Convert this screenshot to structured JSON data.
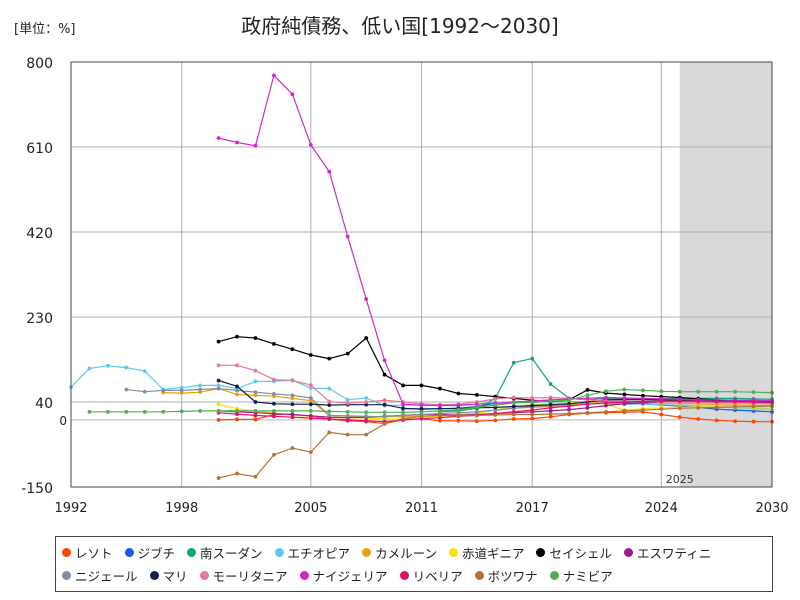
{
  "unit_label": "[単位：%]",
  "chart_data": {
    "type": "line",
    "title": "政府純債務、低い国[1992～2030]",
    "xlabel": "",
    "ylabel": "単位：%",
    "xlim": [
      1992,
      2030
    ],
    "ylim": [
      -150,
      800
    ],
    "x_ticks": [
      1992,
      1998,
      2005,
      2011,
      2017,
      2024,
      2030
    ],
    "x_tick_labels": [
      "1992",
      "1998",
      "2005",
      "2011",
      "2017",
      "2024",
      "2030"
    ],
    "y_ticks": [
      -150,
      40,
      230,
      420,
      610,
      800
    ],
    "y_tick_labels": [
      "-150",
      "40",
      "230",
      "420",
      "610",
      "800"
    ],
    "zero_label": "0",
    "forecast_start": 2025,
    "forecast_label": "2025",
    "series": [
      {
        "name": "レソト",
        "color": "#ff4500",
        "x": [
          2000,
          2001,
          2002,
          2003,
          2004,
          2005,
          2006,
          2007,
          2008,
          2009,
          2010,
          2011,
          2012,
          2013,
          2014,
          2015,
          2016,
          2017,
          2018,
          2019,
          2020,
          2021,
          2022,
          2023,
          2024,
          2025,
          2026,
          2027,
          2028,
          2029,
          2030
        ],
        "values": [
          0,
          1,
          1,
          12,
          12,
          8,
          2,
          -2,
          -4,
          -8,
          0,
          3,
          -2,
          -2,
          -3,
          -1,
          2,
          3,
          7,
          12,
          15,
          16,
          17,
          18,
          12,
          6,
          2,
          -1,
          -3,
          -4,
          -4
        ]
      },
      {
        "name": "ジブチ",
        "color": "#1060e0",
        "x": [
          2010,
          2011,
          2012,
          2013,
          2014,
          2015,
          2016,
          2017,
          2018,
          2019,
          2020,
          2021,
          2022,
          2023,
          2024,
          2025,
          2026,
          2027,
          2028,
          2029,
          2030
        ],
        "values": [
          25,
          25,
          25,
          26,
          30,
          37,
          39,
          39,
          42,
          40,
          40,
          42,
          38,
          36,
          33,
          31,
          28,
          24,
          22,
          20,
          18
        ]
      },
      {
        "name": "南スーダン",
        "color": "#10a878",
        "x": [
          2012,
          2013,
          2014,
          2015,
          2016,
          2017,
          2018,
          2019,
          2020,
          2021,
          2022,
          2023,
          2024,
          2025,
          2026,
          2027,
          2028,
          2029,
          2030
        ],
        "values": [
          18,
          20,
          26,
          48,
          128,
          137,
          80,
          48,
          45,
          48,
          46,
          45,
          47,
          48,
          48,
          48,
          48,
          47,
          46
        ]
      },
      {
        "name": "エチオピア",
        "color": "#60c8f0",
        "x": [
          1992,
          1993,
          1994,
          1995,
          1996,
          1997,
          1998,
          1999,
          2000,
          2001,
          2002,
          2003,
          2004,
          2005,
          2006,
          2007,
          2008,
          2009,
          2010,
          2011,
          2012,
          2013,
          2014,
          2015,
          2016,
          2017,
          2018,
          2019,
          2020,
          2021,
          2022,
          2023,
          2024,
          2025,
          2026,
          2027,
          2028,
          2029,
          2030
        ],
        "values": [
          73,
          115,
          121,
          117,
          109,
          68,
          72,
          77,
          77,
          70,
          86,
          86,
          89,
          71,
          70,
          45,
          49,
          32,
          33,
          33,
          33,
          31,
          35,
          39,
          40,
          40,
          40,
          40,
          36,
          36,
          35,
          35,
          34,
          33,
          31,
          29,
          27,
          25,
          24
        ]
      },
      {
        "name": "カメルーン",
        "color": "#e8a010",
        "x": [
          1997,
          1998,
          1999,
          2000,
          2001,
          2002,
          2003,
          2004,
          2005,
          2006,
          2007,
          2008,
          2009,
          2010,
          2011,
          2012,
          2013,
          2014,
          2015,
          2016,
          2017,
          2018,
          2019,
          2020,
          2021,
          2022,
          2023,
          2024,
          2025,
          2026,
          2027,
          2028,
          2029,
          2030
        ],
        "values": [
          61,
          60,
          62,
          70,
          57,
          55,
          53,
          48,
          43,
          10,
          8,
          5,
          8,
          8,
          8,
          9,
          12,
          15,
          22,
          26,
          28,
          30,
          33,
          35,
          37,
          36,
          38,
          37,
          37,
          36,
          34,
          33,
          33,
          32
        ]
      },
      {
        "name": "赤道ギニア",
        "color": "#f4e400",
        "x": [
          2000,
          2001,
          2002,
          2003,
          2004,
          2005,
          2006,
          2007,
          2008,
          2009,
          2010,
          2011,
          2012,
          2013,
          2014,
          2015,
          2016,
          2017,
          2018,
          2019,
          2020,
          2021,
          2022,
          2023,
          2024,
          2025,
          2026,
          2027,
          2028,
          2029,
          2030
        ],
        "values": [
          35,
          25,
          20,
          15,
          10,
          8,
          6,
          5,
          4,
          3,
          5,
          7,
          8,
          10,
          15,
          22,
          30,
          34,
          36,
          38,
          40,
          35,
          22,
          25,
          27,
          28,
          29,
          29,
          28,
          27,
          27
        ]
      },
      {
        "name": "セイシェル",
        "color": "#000000",
        "x": [
          2000,
          2001,
          2002,
          2003,
          2004,
          2005,
          2006,
          2007,
          2008,
          2009,
          2010,
          2011,
          2012,
          2013,
          2014,
          2015,
          2016,
          2017,
          2018,
          2019,
          2020,
          2021,
          2022,
          2023,
          2024,
          2025,
          2026,
          2027,
          2028,
          2029,
          2030
        ],
        "values": [
          175,
          186,
          183,
          170,
          158,
          145,
          137,
          148,
          183,
          101,
          77,
          77,
          70,
          59,
          56,
          52,
          48,
          44,
          41,
          45,
          67,
          60,
          57,
          54,
          52,
          50,
          47,
          45,
          43,
          41,
          40
        ]
      },
      {
        "name": "エスワティニ",
        "color": "#a01890",
        "x": [
          2000,
          2001,
          2002,
          2003,
          2004,
          2005,
          2006,
          2007,
          2008,
          2009,
          2010,
          2011,
          2012,
          2013,
          2014,
          2015,
          2016,
          2017,
          2018,
          2019,
          2020,
          2021,
          2022,
          2023,
          2024,
          2025,
          2026,
          2027,
          2028,
          2029,
          2030
        ],
        "values": [
          20,
          18,
          16,
          14,
          12,
          9,
          6,
          5,
          6,
          8,
          10,
          12,
          12,
          10,
          12,
          14,
          16,
          18,
          20,
          23,
          27,
          32,
          36,
          38,
          40,
          41,
          42,
          42,
          42,
          42,
          41
        ]
      },
      {
        "name": "ニジェール",
        "color": "#8090a0",
        "x": [
          1995,
          1996,
          1997,
          1998,
          1999,
          2000,
          2001,
          2002,
          2003,
          2004,
          2005,
          2006,
          2007,
          2008,
          2009,
          2010,
          2011,
          2012,
          2013,
          2014,
          2015,
          2016,
          2017,
          2018,
          2019,
          2020,
          2021,
          2022,
          2023,
          2024,
          2025,
          2026,
          2027,
          2028,
          2029,
          2030
        ],
        "values": [
          68,
          63,
          66,
          66,
          68,
          70,
          66,
          62,
          58,
          55,
          49,
          10,
          9,
          8,
          7,
          10,
          12,
          14,
          16,
          18,
          22,
          26,
          30,
          32,
          35,
          40,
          43,
          45,
          44,
          43,
          42,
          41,
          40,
          39,
          38,
          37
        ]
      },
      {
        "name": "マリ",
        "color": "#102050",
        "x": [
          2000,
          2001,
          2002,
          2003,
          2004,
          2005,
          2006,
          2007,
          2008,
          2009,
          2010,
          2011,
          2012,
          2013,
          2014,
          2015,
          2016,
          2017,
          2018,
          2019,
          2020,
          2021,
          2022,
          2023,
          2024,
          2025,
          2026,
          2027,
          2028,
          2029,
          2030
        ],
        "values": [
          88,
          75,
          40,
          36,
          35,
          35,
          33,
          34,
          34,
          34,
          26,
          24,
          25,
          26,
          27,
          28,
          30,
          32,
          34,
          36,
          40,
          45,
          46,
          46,
          45,
          44,
          43,
          42,
          41,
          40,
          39
        ]
      },
      {
        "name": "モーリタニア",
        "color": "#e87898",
        "x": [
          2000,
          2001,
          2002,
          2003,
          2004,
          2005,
          2006,
          2007,
          2008,
          2009,
          2010,
          2011,
          2012,
          2013,
          2014,
          2015,
          2016,
          2017,
          2018,
          2019,
          2020,
          2021,
          2022,
          2023,
          2024,
          2025,
          2026,
          2027,
          2028,
          2029,
          2030
        ],
        "values": [
          122,
          122,
          110,
          90,
          88,
          78,
          41,
          37,
          40,
          44,
          40,
          36,
          34,
          35,
          40,
          47,
          50,
          49,
          50,
          48,
          45,
          42,
          42,
          41,
          40,
          40,
          39,
          38,
          38,
          37,
          36
        ]
      },
      {
        "name": "ナイジェリア",
        "color": "#d028c8",
        "x": [
          2000,
          2001,
          2002,
          2003,
          2004,
          2005,
          2006,
          2007,
          2008,
          2009,
          2010,
          2011,
          2012,
          2013,
          2014,
          2015,
          2016,
          2017,
          2018,
          2019,
          2020,
          2021,
          2022,
          2023,
          2024,
          2025,
          2026,
          2027,
          2028,
          2029,
          2030
        ],
        "values": [
          630,
          620,
          613,
          770,
          728,
          615,
          555,
          410,
          270,
          133,
          35,
          33,
          32,
          33,
          35,
          37,
          40,
          42,
          45,
          47,
          48,
          50,
          49,
          48,
          47,
          46,
          45,
          45,
          44,
          44,
          43
        ]
      },
      {
        "name": "リベリア",
        "color": "#e01070",
        "x": [
          2000,
          2001,
          2002,
          2003,
          2004,
          2005,
          2006,
          2007,
          2008,
          2009,
          2010,
          2011,
          2012,
          2013,
          2014,
          2015,
          2016,
          2017,
          2018,
          2019,
          2020,
          2021,
          2022,
          2023,
          2024,
          2025,
          2026,
          2027,
          2028,
          2029,
          2030
        ],
        "values": [
          16,
          13,
          10,
          8,
          6,
          4,
          2,
          0,
          -2,
          -4,
          0,
          3,
          5,
          8,
          10,
          14,
          18,
          22,
          27,
          31,
          35,
          38,
          40,
          41,
          42,
          42,
          42,
          41,
          41,
          40,
          40
        ]
      },
      {
        "name": "ボツワナ",
        "color": "#b87030",
        "x": [
          2000,
          2001,
          2002,
          2003,
          2004,
          2005,
          2006,
          2007,
          2008,
          2009,
          2010,
          2011,
          2012,
          2013,
          2014,
          2015,
          2016,
          2017,
          2018,
          2019,
          2020,
          2021,
          2022,
          2023,
          2024,
          2025,
          2026,
          2027,
          2028,
          2029,
          2030
        ],
        "values": [
          -130,
          -120,
          -127,
          -78,
          -63,
          -72,
          -28,
          -33,
          -33,
          -9,
          3,
          8,
          10,
          9,
          10,
          11,
          12,
          12,
          13,
          14,
          16,
          18,
          20,
          22,
          24,
          26,
          27,
          28,
          29,
          30,
          31
        ]
      },
      {
        "name": "ナミビア",
        "color": "#50b050",
        "x": [
          1993,
          1994,
          1995,
          1996,
          1997,
          1998,
          1999,
          2000,
          2001,
          2002,
          2003,
          2004,
          2005,
          2006,
          2007,
          2008,
          2009,
          2010,
          2011,
          2012,
          2013,
          2014,
          2015,
          2016,
          2017,
          2018,
          2019,
          2020,
          2021,
          2022,
          2023,
          2024,
          2025,
          2026,
          2027,
          2028,
          2029,
          2030
        ],
        "values": [
          18,
          18,
          18,
          18,
          18,
          19,
          20,
          20,
          20,
          20,
          20,
          20,
          20,
          19,
          18,
          17,
          17,
          17,
          18,
          20,
          23,
          28,
          33,
          38,
          40,
          42,
          44,
          55,
          64,
          68,
          66,
          64,
          63,
          63,
          63,
          63,
          62,
          61
        ]
      }
    ]
  }
}
